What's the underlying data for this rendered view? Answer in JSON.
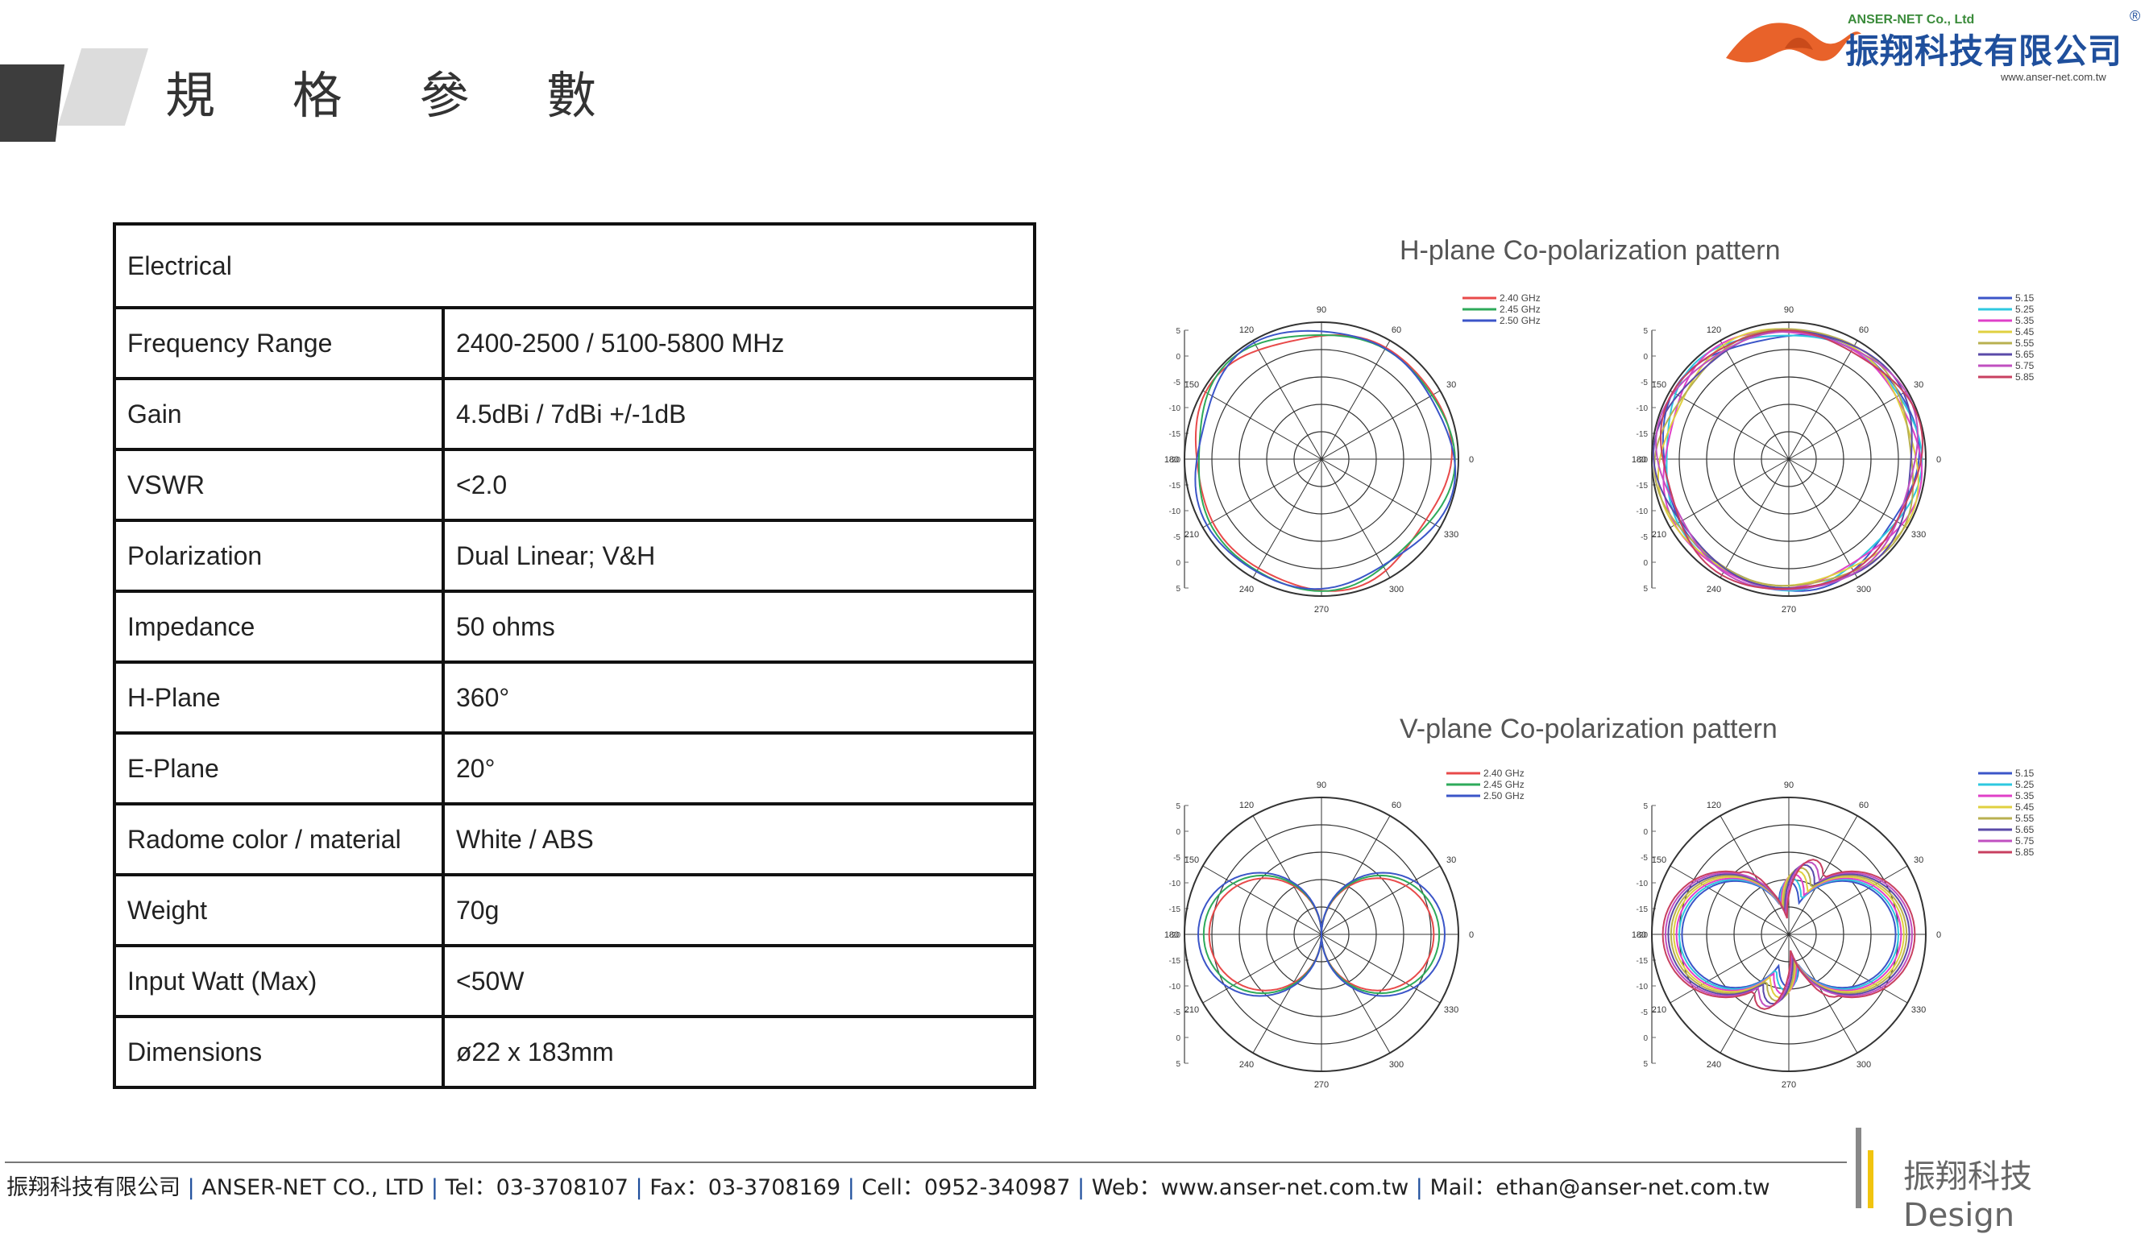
{
  "header": {
    "title": "規 格 參 數"
  },
  "logo": {
    "company_en": "ANSER-NET Co., Ltd",
    "company_zh": "振翔科技有限公司",
    "website": "www.anser-net.com.tw",
    "reg": "®"
  },
  "spec_table": {
    "header": "Electrical",
    "rows": [
      {
        "label": "Frequency Range",
        "value": "2400-2500 / 5100-5800 MHz"
      },
      {
        "label": "Gain",
        "value": "4.5dBi / 7dBi +/-1dB"
      },
      {
        "label": "VSWR",
        "value": "<2.0"
      },
      {
        "label": "Polarization",
        "value": "Dual Linear; V&H"
      },
      {
        "label": "Impedance",
        "value": "50 ohms"
      },
      {
        "label": "H-Plane",
        "value": "360°"
      },
      {
        "label": "E-Plane",
        "value": "20°"
      },
      {
        "label": "Radome color / material",
        "value": "White / ABS"
      },
      {
        "label": "Weight",
        "value": "70g"
      },
      {
        "label": "Input Watt (Max)",
        "value": "<50W"
      },
      {
        "label": "Dimensions",
        "value": "ø22 x 183mm"
      }
    ]
  },
  "charts": {
    "h_title": "H-plane Co-polarization pattern",
    "v_title": "V-plane Co-polarization pattern",
    "angle_labels": [
      "0",
      "30",
      "60",
      "90",
      "120",
      "150",
      "180",
      "210",
      "240",
      "270",
      "300",
      "330"
    ],
    "scale_labels": [
      "5",
      "0",
      "-5",
      "-10",
      "-15",
      "-20",
      "-15",
      "-10",
      "-5",
      "0",
      "5"
    ],
    "legend_24": [
      "2.40 GHz",
      "2.45 GHz",
      "2.50 GHz"
    ],
    "legend_5": [
      "5.15",
      "5.25",
      "5.35",
      "5.45",
      "5.55",
      "5.65",
      "5.75",
      "5.85"
    ],
    "colors_24": [
      "#e84a4a",
      "#2eaa5a",
      "#3b55c8"
    ],
    "colors_5": [
      "#3b55c8",
      "#2ec8e0",
      "#e040c8",
      "#e0d040",
      "#b8b050",
      "#5a4aa8",
      "#c050c0",
      "#c84060"
    ]
  },
  "chart_data": [
    {
      "type": "polar",
      "title": "H-plane Co-polarization pattern",
      "series": [
        {
          "name": "2.40 GHz"
        },
        {
          "name": "2.45 GHz"
        },
        {
          "name": "2.50 GHz"
        }
      ],
      "pattern": "omni"
    },
    {
      "type": "polar",
      "title": "H-plane Co-polarization pattern",
      "series": [
        {
          "name": "5.15"
        },
        {
          "name": "5.25"
        },
        {
          "name": "5.35"
        },
        {
          "name": "5.45"
        },
        {
          "name": "5.55"
        },
        {
          "name": "5.65"
        },
        {
          "name": "5.75"
        },
        {
          "name": "5.85"
        }
      ],
      "pattern": "omni"
    },
    {
      "type": "polar",
      "title": "V-plane Co-polarization pattern",
      "series": [
        {
          "name": "2.40 GHz"
        },
        {
          "name": "2.45 GHz"
        },
        {
          "name": "2.50 GHz"
        }
      ],
      "pattern": "figure-eight"
    },
    {
      "type": "polar",
      "title": "V-plane Co-polarization pattern",
      "series": [
        {
          "name": "5.15"
        },
        {
          "name": "5.25"
        },
        {
          "name": "5.35"
        },
        {
          "name": "5.45"
        },
        {
          "name": "5.55"
        },
        {
          "name": "5.65"
        },
        {
          "name": "5.75"
        },
        {
          "name": "5.85"
        }
      ],
      "pattern": "multi-lobe"
    }
  ],
  "footer": {
    "company_zh": "振翔科技有限公司",
    "company_en": "ANSER-NET  CO.,  LTD",
    "tel": "Tel：03-3708107",
    "fax": "Fax：03-3708169",
    "cell": "Cell：0952-340987",
    "web": "Web：www.anser-net.com.tw",
    "mail": "Mail：ethan@anser-net.com.tw",
    "brand": "振翔科技 Design"
  }
}
